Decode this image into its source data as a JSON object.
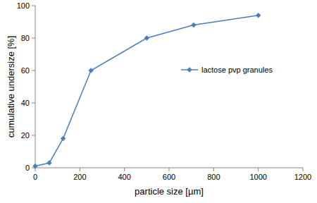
{
  "chart_data": {
    "type": "line",
    "x_label": "particle size [µm]",
    "y_label": "cumulative undersize [%]",
    "x": [
      0,
      63,
      125,
      250,
      500,
      710,
      1000
    ],
    "series": [
      {
        "name": "lactose pvp granules",
        "color": "#4a7ebb",
        "marker": "diamond",
        "line_style": "solid",
        "values": [
          1,
          3,
          18,
          60,
          80,
          88,
          94
        ]
      }
    ],
    "xlim": [
      0,
      1200
    ],
    "xticks": [
      0,
      200,
      400,
      600,
      800,
      1000,
      1200
    ],
    "ylim": [
      0,
      100
    ],
    "yticks": [
      0,
      20,
      40,
      60,
      80,
      100
    ],
    "grid": false,
    "legend": "right"
  }
}
